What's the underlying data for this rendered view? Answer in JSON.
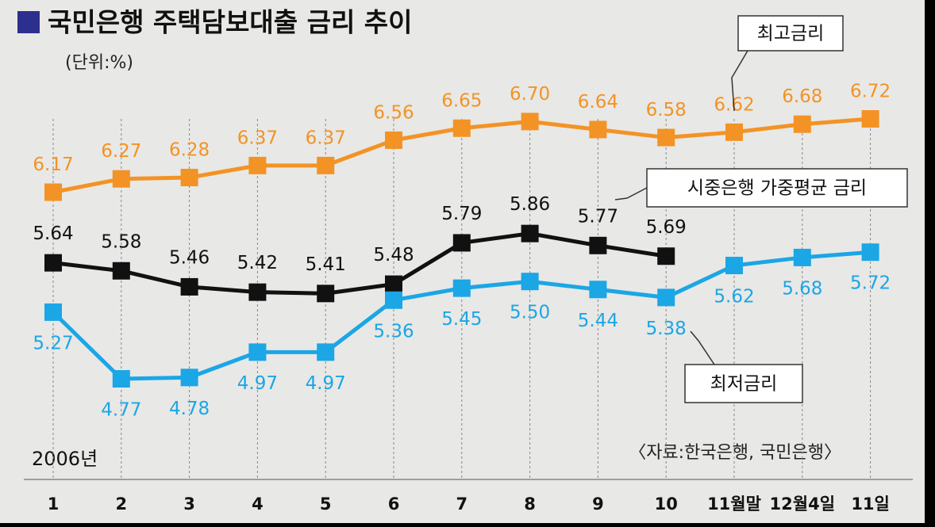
{
  "chart_data": {
    "type": "line",
    "title": "국민은행 주택담보대출 금리 추이",
    "unit": "(단위:%)",
    "year_label": "2006년",
    "source": "〈자료:한국은행, 국민은행〉",
    "categories": [
      "1",
      "2",
      "3",
      "4",
      "5",
      "6",
      "7",
      "8",
      "9",
      "10",
      "11월말",
      "12월4일",
      "11일"
    ],
    "series": [
      {
        "name": "최고금리",
        "color": "#f39325",
        "values": [
          6.17,
          6.27,
          6.28,
          6.37,
          6.37,
          6.56,
          6.65,
          6.7,
          6.64,
          6.58,
          6.62,
          6.68,
          6.72
        ],
        "value_labels": [
          "6.17",
          "6.27",
          "6.28",
          "6.37",
          "6.37",
          "6.56",
          "6.65",
          "6.70",
          "6.64",
          "6.58",
          "6.62",
          "6.68",
          "6.72"
        ]
      },
      {
        "name": "시중은행 가중평균 금리",
        "color": "#111111",
        "values": [
          5.64,
          5.58,
          5.46,
          5.42,
          5.41,
          5.48,
          5.79,
          5.86,
          5.77,
          5.69,
          null,
          null,
          null
        ],
        "value_labels": [
          "5.64",
          "5.58",
          "5.46",
          "5.42",
          "5.41",
          "5.48",
          "5.79",
          "5.86",
          "5.77",
          "5.69",
          null,
          null,
          null
        ]
      },
      {
        "name": "최저금리",
        "color": "#1ba6e6",
        "values": [
          5.27,
          4.77,
          4.78,
          4.97,
          4.97,
          5.36,
          5.45,
          5.5,
          5.44,
          5.38,
          5.62,
          5.68,
          5.72
        ],
        "value_labels": [
          "5.27",
          "4.77",
          "4.78",
          "4.97",
          "4.97",
          "5.36",
          "5.45",
          "5.50",
          "5.44",
          "5.38",
          "5.62",
          "5.68",
          "5.72"
        ]
      }
    ]
  }
}
